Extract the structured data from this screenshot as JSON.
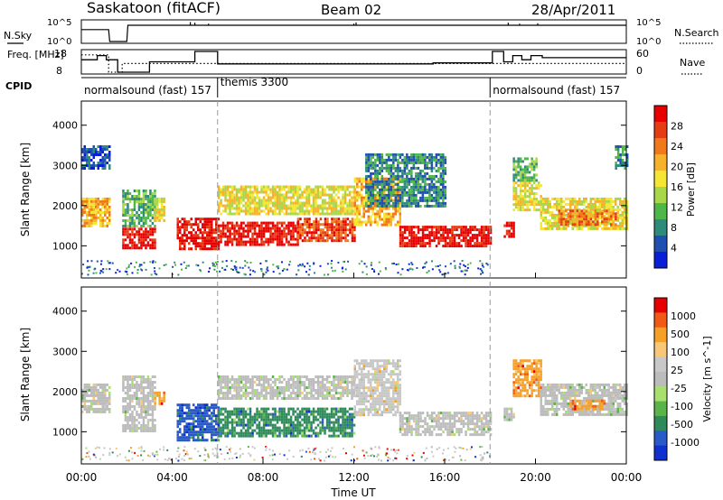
{
  "header": {
    "station": "Saskatoon (fitACF)",
    "beam": "Beam 02",
    "date": "28/Apr/2011"
  },
  "colors": {
    "power_scale": [
      "#0a1ed8",
      "#1f4fb0",
      "#2e8a7a",
      "#4fb64a",
      "#a8d84a",
      "#f4e632",
      "#f6b22a",
      "#f07a1a",
      "#e63c14",
      "#e60000"
    ],
    "velocity_scale": [
      "#e60000",
      "#f05a14",
      "#f6a028",
      "#f8c878",
      "#c8c8c8",
      "#bcbcbc",
      "#a8e070",
      "#5ab44a",
      "#2e8a5a",
      "#2a5ac8",
      "#1030d0"
    ]
  },
  "chart_data": [
    {
      "type": "line",
      "name": "n-sky-panel",
      "left_label": "N.Sky",
      "right_label": "N.Search",
      "ytick_labels": [
        "10^5",
        "10^0"
      ],
      "series": [
        {
          "name": "N.Sky",
          "style": "solid"
        },
        {
          "name": "N.Search",
          "style": "dotted"
        }
      ],
      "x": [
        0,
        1.2,
        1.25,
        2.0,
        2.05,
        24
      ],
      "y_level": [
        0.6,
        0.6,
        0.0,
        0.0,
        0.82,
        0.82
      ]
    },
    {
      "type": "line",
      "name": "freq-panel",
      "left_label": "Freq. [MHz]",
      "right_label": "Nave",
      "left_ticks": [
        "18",
        "8"
      ],
      "right_ticks": [
        "60",
        "0"
      ],
      "series": [
        {
          "name": "Freq.",
          "style": "solid",
          "x": [
            0,
            0.7,
            0.7,
            1.1,
            1.1,
            1.6,
            1.6,
            3.0,
            3.0,
            5.0,
            5.0,
            6.0,
            6.0,
            15.5,
            15.5,
            18.1,
            18.1,
            18.6,
            18.6,
            19.0,
            19.0,
            19.4,
            19.4,
            19.8,
            19.8,
            20.3,
            20.3,
            24
          ],
          "y": [
            14,
            14,
            16,
            16,
            14,
            14,
            8,
            8,
            13,
            13,
            18,
            18,
            12,
            12,
            12.5,
            12.5,
            18,
            18,
            13,
            13,
            16,
            16,
            14,
            14,
            16,
            16,
            15,
            15
          ]
        },
        {
          "name": "Nave",
          "style": "dotted",
          "x": [
            0,
            1.2,
            1.2,
            1.8,
            1.8,
            24
          ],
          "y": [
            50,
            50,
            0,
            0,
            25,
            25
          ]
        }
      ]
    },
    {
      "type": "table",
      "name": "cpid-panel",
      "label": "CPID",
      "segments": [
        {
          "start_hour": 0,
          "end_hour": 6.0,
          "text": "normalsound (fast) 157"
        },
        {
          "start_hour": 6.0,
          "end_hour": 18.0,
          "text": "themis 3300"
        },
        {
          "start_hour": 18.0,
          "end_hour": 24,
          "text": "normalsound (fast) 157"
        }
      ]
    },
    {
      "type": "heatmap",
      "name": "power-panel",
      "ylabel": "Slant Range [km]",
      "yticks": [
        1000,
        2000,
        3000,
        4000
      ],
      "ylim": [
        200,
        4600
      ],
      "colorbar_label": "Power [dB]",
      "colorbar_ticks": [
        "4",
        "8",
        "12",
        "16",
        "20",
        "24",
        "28"
      ],
      "regions": [
        {
          "x0": 0.0,
          "x1": 1.2,
          "y0": 1500,
          "y1": 2200,
          "level": 6
        },
        {
          "x0": 0.0,
          "x1": 1.2,
          "y0": 2900,
          "y1": 3500,
          "level": 1
        },
        {
          "x0": 1.8,
          "x1": 3.2,
          "y0": 950,
          "y1": 1450,
          "level": 9
        },
        {
          "x0": 1.8,
          "x1": 3.2,
          "y0": 1500,
          "y1": 2400,
          "level": 3
        },
        {
          "x0": 3.2,
          "x1": 3.6,
          "y0": 1600,
          "y1": 2200,
          "level": 5
        },
        {
          "x0": 4.2,
          "x1": 6.0,
          "y0": 900,
          "y1": 1700,
          "level": 9
        },
        {
          "x0": 6.0,
          "x1": 9.5,
          "y0": 1000,
          "y1": 1600,
          "level": 9
        },
        {
          "x0": 6.0,
          "x1": 12.0,
          "y0": 1800,
          "y1": 2500,
          "level": 5
        },
        {
          "x0": 9.5,
          "x1": 12.0,
          "y0": 1100,
          "y1": 1700,
          "level": 8
        },
        {
          "x0": 12.0,
          "x1": 14.0,
          "y0": 1500,
          "y1": 2700,
          "level": 6
        },
        {
          "x0": 14.0,
          "x1": 18.0,
          "y0": 1000,
          "y1": 1500,
          "level": 9
        },
        {
          "x0": 12.5,
          "x1": 16.0,
          "y0": 2000,
          "y1": 3300,
          "level": 2
        },
        {
          "x0": 18.6,
          "x1": 19.0,
          "y0": 1200,
          "y1": 1600,
          "level": 9
        },
        {
          "x0": 19.0,
          "x1": 20.2,
          "y0": 1900,
          "y1": 2600,
          "level": 5
        },
        {
          "x0": 19.0,
          "x1": 20.0,
          "y0": 2600,
          "y1": 3200,
          "level": 3
        },
        {
          "x0": 20.2,
          "x1": 24.0,
          "y0": 1400,
          "y1": 2200,
          "level": 5
        },
        {
          "x0": 21.0,
          "x1": 23.5,
          "y0": 1550,
          "y1": 1900,
          "level": 7
        },
        {
          "x0": 23.5,
          "x1": 24.0,
          "y0": 2900,
          "y1": 3500,
          "level": 2
        }
      ]
    },
    {
      "type": "heatmap",
      "name": "velocity-panel",
      "ylabel": "Slant Range [km]",
      "yticks": [
        1000,
        2000,
        3000,
        4000
      ],
      "ylim": [
        200,
        4600
      ],
      "xlabel": "Time UT",
      "xtick_labels": [
        "00:00",
        "04:00",
        "08:00",
        "12:00",
        "16:00",
        "20:00",
        "00:00"
      ],
      "xtick_hours": [
        0,
        4,
        8,
        12,
        16,
        20,
        24
      ],
      "colorbar_label": "Velocity [m s^-1]",
      "colorbar_ticks": [
        "-1000",
        "-500",
        "-100",
        "-25",
        "25",
        "100",
        "500",
        "1000"
      ],
      "regions": [
        {
          "x0": 0.0,
          "x1": 1.2,
          "y0": 1500,
          "y1": 2200,
          "level": 5
        },
        {
          "x0": 1.8,
          "x1": 3.2,
          "y0": 1000,
          "y1": 2400,
          "level": 5
        },
        {
          "x0": 3.2,
          "x1": 3.6,
          "y0": 1700,
          "y1": 2000,
          "level": 2
        },
        {
          "x0": 4.2,
          "x1": 6.0,
          "y0": 800,
          "y1": 1700,
          "level": 9
        },
        {
          "x0": 6.0,
          "x1": 12.0,
          "y0": 900,
          "y1": 1600,
          "level": 8
        },
        {
          "x0": 6.0,
          "x1": 12.0,
          "y0": 1800,
          "y1": 2400,
          "level": 5
        },
        {
          "x0": 12.0,
          "x1": 14.0,
          "y0": 1400,
          "y1": 2800,
          "level": 4
        },
        {
          "x0": 14.0,
          "x1": 18.0,
          "y0": 900,
          "y1": 1500,
          "level": 5
        },
        {
          "x0": 18.6,
          "x1": 19.0,
          "y0": 1300,
          "y1": 1600,
          "level": 5
        },
        {
          "x0": 19.0,
          "x1": 20.2,
          "y0": 1900,
          "y1": 2800,
          "level": 2
        },
        {
          "x0": 20.2,
          "x1": 24.0,
          "y0": 1400,
          "y1": 2200,
          "level": 5
        },
        {
          "x0": 21.5,
          "x1": 23.0,
          "y0": 1550,
          "y1": 1800,
          "level": 2
        }
      ]
    }
  ]
}
